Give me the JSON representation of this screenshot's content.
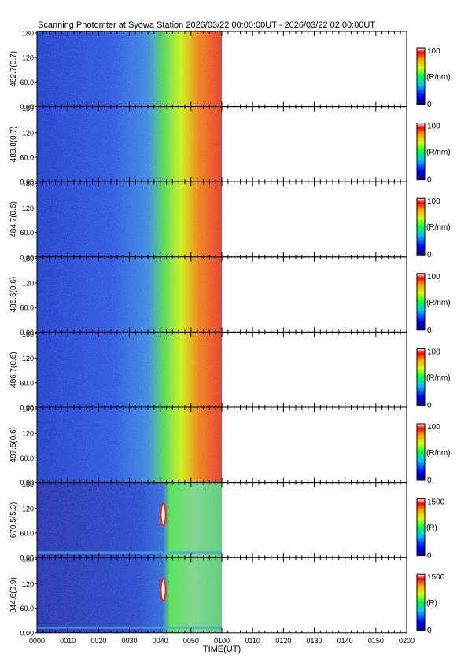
{
  "title": "Scanning Photomter at Syowa Station  2026/03/22 00:00:00UT - 2026/03/22 02:00:00UT",
  "chart_data": {
    "type": "heatmap",
    "xlabel": "TIME(UT)",
    "xlim": [
      0,
      120
    ],
    "x_tick_labels": [
      "0000",
      "0010",
      "0020",
      "0030",
      "0040",
      "0050",
      "0100",
      "0110",
      "0120",
      "0130",
      "0140",
      "0150",
      "0200"
    ],
    "y_tick_labels": [
      "0.00",
      "60.0",
      "120",
      "180"
    ],
    "ylim": [
      0,
      180
    ],
    "data_extent_minutes": [
      0,
      60
    ],
    "panels": [
      {
        "ylabel": "482.7(0.7)",
        "cbar_max": "100",
        "cbar_min": "0",
        "cbar_unit": "(R/nm)",
        "profile": "blue"
      },
      {
        "ylabel": "483.8(0.7)",
        "cbar_max": "100",
        "cbar_min": "0",
        "cbar_unit": "(R/nm)",
        "profile": "blue"
      },
      {
        "ylabel": "484.7(0.6)",
        "cbar_max": "100",
        "cbar_min": "0",
        "cbar_unit": "(R/nm)",
        "profile": "blue"
      },
      {
        "ylabel": "485.6(0.6)",
        "cbar_max": "100",
        "cbar_min": "0",
        "cbar_unit": "(R/nm)",
        "profile": "blue"
      },
      {
        "ylabel": "486.7(0.6)",
        "cbar_max": "100",
        "cbar_min": "0",
        "cbar_unit": "(R/nm)",
        "profile": "blue"
      },
      {
        "ylabel": "487.5(0.6)",
        "cbar_max": "100",
        "cbar_min": "0",
        "cbar_unit": "(R/nm)",
        "profile": "blue"
      },
      {
        "ylabel": "670.5(5.3)",
        "cbar_max": "1500",
        "cbar_min": "0",
        "cbar_unit": "(R)",
        "profile": "red"
      },
      {
        "ylabel": "844.6(0.9)",
        "cbar_max": "1500",
        "cbar_min": "0",
        "cbar_unit": "(R)",
        "profile": "red"
      }
    ]
  }
}
